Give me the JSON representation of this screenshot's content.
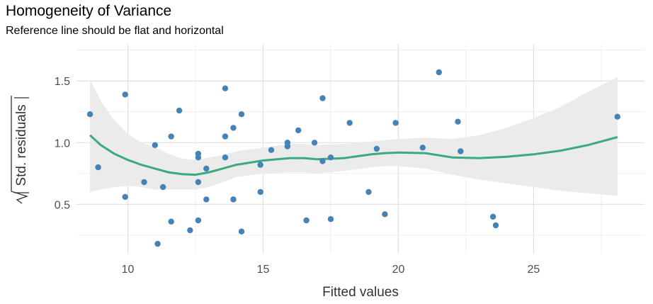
{
  "chart_data": {
    "type": "scatter",
    "title": "Homogeneity of Variance",
    "subtitle": "Reference line should be flat and horizontal",
    "xlabel": "Fitted values",
    "ylabel": "Std. residuals",
    "xlim": [
      8.1,
      29.1
    ],
    "ylim": [
      0.1,
      1.8
    ],
    "x_ticks": [
      10,
      15,
      20,
      25
    ],
    "y_ticks": [
      0.5,
      1.0,
      1.5
    ],
    "x_tick_labels": [
      "10",
      "15",
      "20",
      "25"
    ],
    "y_tick_labels": [
      "0.5",
      "1.0",
      "1.5"
    ],
    "grid": true,
    "colors": {
      "points": "#4682b4",
      "line": "#3aaa80",
      "band": "#ebebeb",
      "grid": "#ebebeb"
    },
    "points": [
      [
        8.6,
        1.23
      ],
      [
        8.9,
        0.8
      ],
      [
        9.9,
        0.56
      ],
      [
        9.9,
        1.39
      ],
      [
        10.6,
        0.68
      ],
      [
        11.0,
        0.98
      ],
      [
        11.1,
        0.18
      ],
      [
        11.3,
        0.64
      ],
      [
        11.6,
        1.05
      ],
      [
        11.6,
        0.36
      ],
      [
        11.9,
        1.26
      ],
      [
        12.3,
        0.29
      ],
      [
        12.6,
        0.37
      ],
      [
        12.6,
        0.68
      ],
      [
        12.6,
        0.88
      ],
      [
        12.6,
        0.91
      ],
      [
        12.9,
        0.54
      ],
      [
        12.9,
        0.79
      ],
      [
        13.6,
        1.44
      ],
      [
        13.6,
        1.05
      ],
      [
        13.6,
        0.88
      ],
      [
        13.9,
        1.12
      ],
      [
        13.9,
        0.54
      ],
      [
        13.9,
        0.54
      ],
      [
        14.2,
        1.23
      ],
      [
        14.2,
        0.28
      ],
      [
        14.9,
        0.6
      ],
      [
        14.9,
        0.82
      ],
      [
        15.3,
        0.94
      ],
      [
        15.9,
        1.0
      ],
      [
        15.9,
        0.97
      ],
      [
        16.3,
        1.1
      ],
      [
        16.6,
        0.37
      ],
      [
        16.9,
        1.0
      ],
      [
        17.2,
        1.36
      ],
      [
        17.2,
        0.85
      ],
      [
        17.5,
        0.88
      ],
      [
        17.5,
        0.38
      ],
      [
        18.2,
        1.16
      ],
      [
        18.9,
        0.6
      ],
      [
        19.2,
        0.95
      ],
      [
        19.5,
        0.42
      ],
      [
        19.9,
        1.16
      ],
      [
        20.9,
        0.96
      ],
      [
        21.5,
        1.57
      ],
      [
        22.2,
        1.17
      ],
      [
        22.3,
        0.93
      ],
      [
        23.5,
        0.4
      ],
      [
        23.6,
        0.33
      ],
      [
        28.1,
        1.21
      ]
    ],
    "smooth": [
      [
        8.6,
        1.06,
        0.6,
        1.51
      ],
      [
        9.0,
        0.98,
        0.62,
        1.34
      ],
      [
        9.5,
        0.91,
        0.64,
        1.18
      ],
      [
        10.0,
        0.86,
        0.65,
        1.07
      ],
      [
        10.5,
        0.82,
        0.64,
        1.0
      ],
      [
        11.0,
        0.79,
        0.62,
        0.96
      ],
      [
        11.5,
        0.76,
        0.62,
        0.91
      ],
      [
        12.0,
        0.745,
        0.62,
        0.87
      ],
      [
        12.5,
        0.74,
        0.62,
        0.86
      ],
      [
        13.0,
        0.76,
        0.64,
        0.88
      ],
      [
        13.5,
        0.79,
        0.68,
        0.9
      ],
      [
        14.0,
        0.82,
        0.72,
        0.93
      ],
      [
        15.0,
        0.855,
        0.75,
        0.96
      ],
      [
        16.0,
        0.875,
        0.76,
        0.99
      ],
      [
        16.5,
        0.875,
        0.76,
        0.99
      ],
      [
        17.0,
        0.865,
        0.75,
        0.98
      ],
      [
        18.0,
        0.875,
        0.77,
        0.99
      ],
      [
        19.0,
        0.905,
        0.8,
        1.01
      ],
      [
        19.5,
        0.915,
        0.81,
        1.02
      ],
      [
        20.0,
        0.92,
        0.81,
        1.03
      ],
      [
        21.0,
        0.915,
        0.79,
        1.04
      ],
      [
        22.0,
        0.88,
        0.74,
        1.03
      ],
      [
        23.0,
        0.875,
        0.7,
        1.06
      ],
      [
        24.0,
        0.885,
        0.67,
        1.12
      ],
      [
        25.0,
        0.905,
        0.64,
        1.2
      ],
      [
        26.0,
        0.935,
        0.61,
        1.29
      ],
      [
        27.0,
        0.98,
        0.59,
        1.41
      ],
      [
        28.1,
        1.045,
        0.57,
        1.53
      ]
    ]
  }
}
